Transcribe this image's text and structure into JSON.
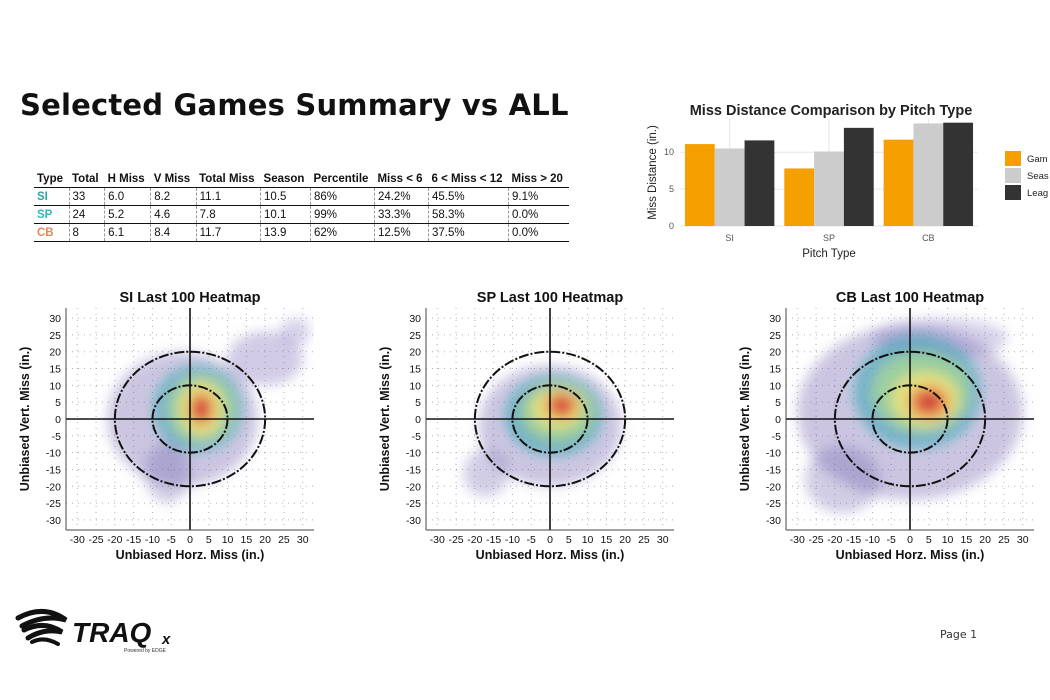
{
  "page": {
    "title": "Selected Games Summary vs ALL",
    "page_label": "Page 1"
  },
  "brand": {
    "name": "TRAQ",
    "suffix": "x",
    "tagline": "Powered by EDGE"
  },
  "summary_table": {
    "columns": [
      "Type",
      "Total",
      "H Miss",
      "V Miss",
      "Total Miss",
      "Season",
      "Percentile",
      "Miss < 6",
      "6 < Miss < 12",
      "Miss > 20"
    ],
    "rows": [
      {
        "cells": [
          "SI",
          "33",
          "6.0",
          "8.2",
          "11.1",
          "10.5",
          "86%",
          "24.2%",
          "45.5%",
          "9.1%"
        ],
        "type_color": "#2aa6a0"
      },
      {
        "cells": [
          "SP",
          "24",
          "5.2",
          "4.6",
          "7.8",
          "10.1",
          "99%",
          "33.3%",
          "58.3%",
          "0.0%"
        ],
        "type_color": "#2fb8c0"
      },
      {
        "cells": [
          "CB",
          "8",
          "6.1",
          "8.4",
          "11.7",
          "13.9",
          "62%",
          "12.5%",
          "37.5%",
          "0.0%"
        ],
        "type_color": "#e08a5a"
      }
    ]
  },
  "chart_data": [
    {
      "type": "bar",
      "title": "Miss Distance Comparison by Pitch Type",
      "xlabel": "Pitch Type",
      "ylabel": "Miss Distance (in.)",
      "ylim": [
        0,
        14.5
      ],
      "yticks": [
        0,
        5,
        10
      ],
      "categories": [
        "SI",
        "SP",
        "CB"
      ],
      "legend_position": "right",
      "series": [
        {
          "name": "Gam",
          "color": "#f5a000",
          "values": [
            11.1,
            7.8,
            11.7
          ]
        },
        {
          "name": "Seas",
          "color": "#cccccc",
          "values": [
            10.5,
            10.1,
            13.9
          ]
        },
        {
          "name": "Leag",
          "color": "#333333",
          "values": [
            11.6,
            13.3,
            14.0
          ]
        }
      ],
      "grid": true
    },
    {
      "type": "heatmap",
      "title": "SI Last 100 Heatmap",
      "xlabel": "Unbiased Horz. Miss (in.)",
      "ylabel": "Unbiased Vert. Miss (in.)",
      "xlim": [
        -33,
        33
      ],
      "ylim": [
        -33,
        33
      ],
      "ticks": [
        -30,
        -25,
        -20,
        -15,
        -10,
        -5,
        0,
        5,
        10,
        15,
        20,
        25,
        30
      ],
      "rings": [
        10,
        20
      ],
      "hot_spot": {
        "x": 3,
        "y": 3
      }
    },
    {
      "type": "heatmap",
      "title": "SP Last 100 Heatmap",
      "xlabel": "Unbiased Horz. Miss (in.)",
      "ylabel": "Unbiased Vert. Miss (in.)",
      "xlim": [
        -33,
        33
      ],
      "ylim": [
        -33,
        33
      ],
      "ticks": [
        -30,
        -25,
        -20,
        -15,
        -10,
        -5,
        0,
        5,
        10,
        15,
        20,
        25,
        30
      ],
      "rings": [
        10,
        20
      ],
      "hot_spot": {
        "x": 3,
        "y": 4
      }
    },
    {
      "type": "heatmap",
      "title": "CB Last 100 Heatmap",
      "xlabel": "Unbiased Horz. Miss (in.)",
      "ylabel": "Unbiased Vert. Miss (in.)",
      "xlim": [
        -33,
        33
      ],
      "ylim": [
        -33,
        33
      ],
      "ticks": [
        -30,
        -25,
        -20,
        -15,
        -10,
        -5,
        0,
        5,
        10,
        15,
        20,
        25,
        30
      ],
      "rings": [
        10,
        20
      ],
      "hot_spot": {
        "x": 5,
        "y": 5
      }
    }
  ]
}
